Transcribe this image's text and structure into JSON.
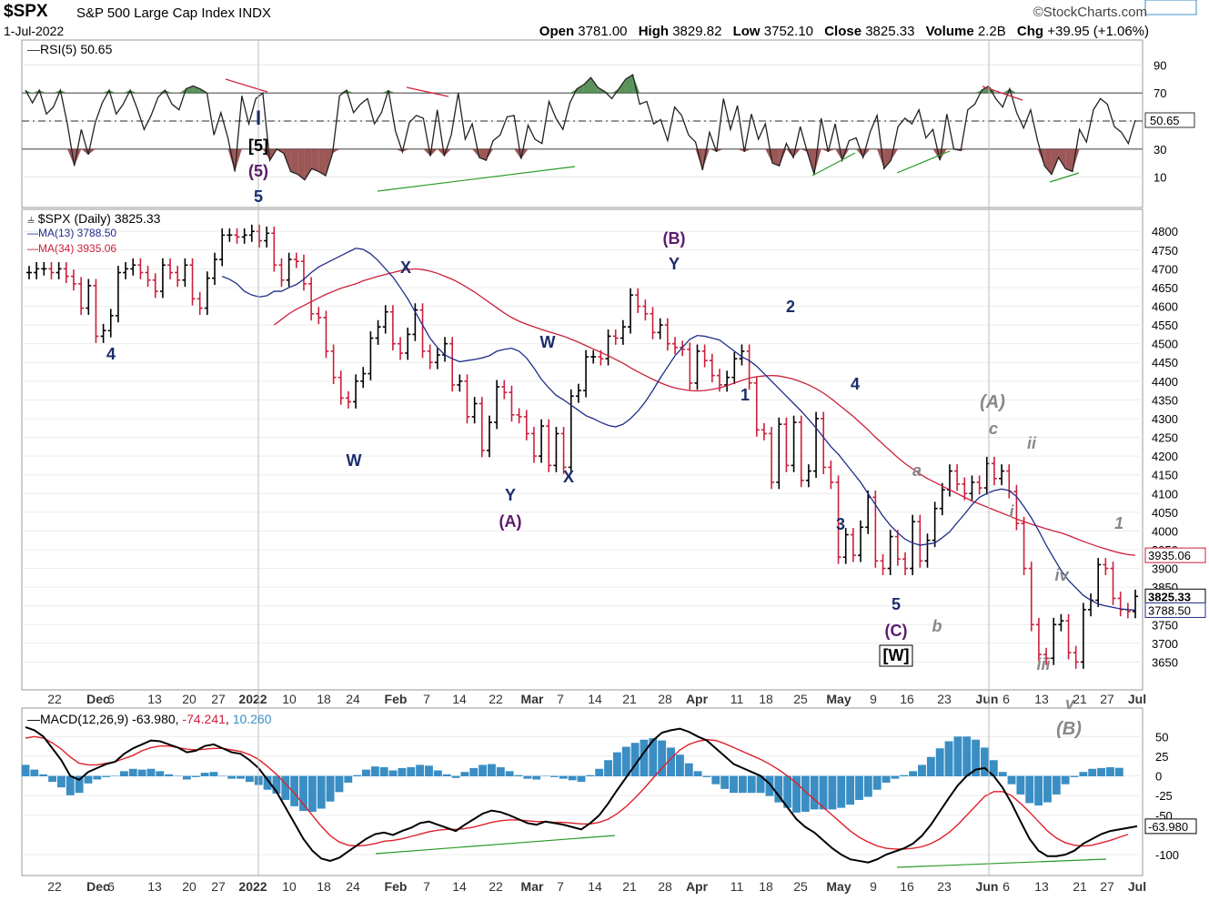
{
  "header": {
    "symbol": "$SPX",
    "name": "S&P 500 Large Cap Index INDX",
    "date": "1-Jul-2022",
    "brand": "©StockCharts.com",
    "open_label": "Open",
    "open": "3781.00",
    "high_label": "High",
    "high": "3829.82",
    "low_label": "Low",
    "low": "3752.10",
    "close_label": "Close",
    "close": "3825.33",
    "volume_label": "Volume",
    "volume": "2.2B",
    "chg_label": "Chg",
    "chg": "+39.95 (+1.06%)"
  },
  "colors": {
    "up": "#000000",
    "down": "#cc1f3a",
    "ma13": "#1f2d8a",
    "ma34": "#cc1f3a",
    "rsi_above": "#3e7f3e",
    "rsi_below": "#8b3a3a",
    "macd_hist": "#3a8ec4",
    "divergence": "#2a9a2a",
    "count_blue": "#1a2d6b",
    "count_purple": "#5b1a6e",
    "count_gray": "#888888"
  },
  "chart_data": [
    {
      "type": "line",
      "panel": "rsi",
      "title": "RSI(5) 50.65",
      "last_value": "50.65",
      "ylim": [
        0,
        100
      ],
      "y_ticks": [
        "90",
        "70",
        "50",
        "30",
        "10"
      ],
      "levels": [
        70,
        50,
        30
      ],
      "values": [
        72,
        63,
        72,
        55,
        60,
        72,
        48,
        18,
        44,
        26,
        49,
        63,
        72,
        55,
        62,
        72,
        59,
        44,
        54,
        67,
        72,
        62,
        58,
        73,
        75,
        73,
        70,
        40,
        56,
        38,
        14,
        68,
        48,
        66,
        70,
        22,
        30,
        27,
        14,
        12,
        8,
        16,
        14,
        11,
        27,
        68,
        72,
        56,
        62,
        66,
        48,
        56,
        72,
        43,
        28,
        49,
        54,
        52,
        25,
        58,
        25,
        40,
        70,
        37,
        48,
        24,
        22,
        36,
        40,
        53,
        54,
        23,
        47,
        37,
        34,
        64,
        52,
        44,
        63,
        73,
        76,
        81,
        74,
        71,
        66,
        73,
        80,
        83,
        62,
        64,
        48,
        51,
        36,
        60,
        54,
        40,
        35,
        15,
        42,
        28,
        66,
        44,
        61,
        28,
        55,
        37,
        48,
        20,
        18,
        34,
        24,
        46,
        28,
        12,
        52,
        28,
        48,
        22,
        36,
        38,
        24,
        42,
        54,
        16,
        22,
        46,
        52,
        48,
        58,
        38,
        44,
        22,
        55,
        30,
        29,
        58,
        62,
        72,
        75,
        66,
        60,
        73,
        56,
        45,
        58,
        36,
        18,
        12,
        24,
        16,
        14,
        44,
        35,
        58,
        66,
        62,
        46,
        42,
        34,
        50.65
      ]
    },
    {
      "type": "ohlc",
      "panel": "price",
      "title": "$SPX (Daily) 3825.33",
      "ylim": [
        3600,
        4820
      ],
      "y_ticks": [
        "4800",
        "4750",
        "4700",
        "4650",
        "4600",
        "4550",
        "4500",
        "4450",
        "4400",
        "4350",
        "4300",
        "4250",
        "4200",
        "4150",
        "4100",
        "4050",
        "4000",
        "3950",
        "3900",
        "3850",
        "3800",
        "3750",
        "3700",
        "3650"
      ],
      "x_ticks": [
        "22",
        "Dec",
        "6",
        "13",
        "20",
        "27",
        "2022",
        "10",
        "18",
        "24",
        "Feb",
        "7",
        "14",
        "22",
        "Mar",
        "7",
        "14",
        "21",
        "28",
        "Apr",
        "11",
        "18",
        "25",
        "May",
        "9",
        "16",
        "23",
        "Jun",
        "6",
        "13",
        "21",
        "27",
        "Jul"
      ],
      "series": [
        {
          "name": "$SPX (Daily) 3825.33",
          "last_value": "3825.33"
        },
        {
          "name": "MA(13) 3788.50",
          "last_value": "3788.50"
        },
        {
          "name": "MA(34) 3935.06",
          "last_value": "3935.06"
        }
      ],
      "close": [
        4690,
        4700,
        4700,
        4690,
        4700,
        4680,
        4660,
        4595,
        4655,
        4520,
        4535,
        4575,
        4690,
        4700,
        4710,
        4690,
        4670,
        4640,
        4710,
        4690,
        4670,
        4710,
        4620,
        4595,
        4675,
        4725,
        4790,
        4790,
        4785,
        4790,
        4800,
        4775,
        4795,
        4710,
        4670,
        4725,
        4720,
        4660,
        4580,
        4570,
        4480,
        4410,
        4355,
        4345,
        4400,
        4420,
        4515,
        4545,
        4585,
        4500,
        4475,
        4525,
        4590,
        4480,
        4450,
        4470,
        4500,
        4390,
        4400,
        4305,
        4340,
        4215,
        4290,
        4385,
        4370,
        4310,
        4305,
        4260,
        4200,
        4280,
        4175,
        4260,
        4170,
        4360,
        4375,
        4465,
        4465,
        4460,
        4520,
        4515,
        4545,
        4630,
        4600,
        4580,
        4530,
        4550,
        4500,
        4490,
        4485,
        4395,
        4480,
        4455,
        4415,
        4390,
        4410,
        4460,
        4480,
        4395,
        4270,
        4260,
        4130,
        4285,
        4175,
        4290,
        4135,
        4160,
        4300,
        4170,
        4130,
        3930,
        3990,
        3935,
        4010,
        4090,
        3920,
        3900,
        3985,
        3925,
        3900,
        4025,
        3920,
        3975,
        4060,
        4110,
        4160,
        4125,
        4100,
        4130,
        4115,
        4180,
        4140,
        4160,
        4105,
        4020,
        3900,
        3750,
        3670,
        3660,
        3750,
        3760,
        3675,
        3650,
        3790,
        3815,
        3910,
        3900,
        3820,
        3790,
        3785,
        3825.33
      ],
      "ma13": [
        4680,
        4672,
        4660,
        4640,
        4630,
        4625,
        4628,
        4640,
        4640,
        4650,
        4658,
        4672,
        4690,
        4705,
        4715,
        4725,
        4735,
        4745,
        4755,
        4752,
        4740,
        4722,
        4700,
        4678,
        4650,
        4620,
        4585,
        4550,
        4515,
        4490,
        4470,
        4460,
        4452,
        4455,
        4458,
        4462,
        4468,
        4480,
        4485,
        4488,
        4480,
        4462,
        4435,
        4405,
        4382,
        4362,
        4350,
        4336,
        4322,
        4308,
        4300,
        4290,
        4282,
        4278,
        4285,
        4300,
        4320,
        4345,
        4375,
        4408,
        4438,
        4468,
        4490,
        4512,
        4522,
        4520,
        4515,
        4510,
        4495,
        4480,
        4465,
        4455,
        4440,
        4420,
        4400,
        4380,
        4360,
        4340,
        4320,
        4298,
        4275,
        4250,
        4225,
        4205,
        4180,
        4155,
        4130,
        4100,
        4070,
        4040,
        4015,
        3995,
        3978,
        3968,
        3962,
        3965,
        3968,
        3982,
        3998,
        4022,
        4045,
        4070,
        4090,
        4100,
        4108,
        4112,
        4108,
        4092,
        4065,
        4035,
        4000,
        3962,
        3928,
        3895,
        3868,
        3848,
        3828,
        3815,
        3805,
        3800,
        3796,
        3792,
        3790,
        3788.5
      ],
      "ma34": [
        4550,
        4565,
        4580,
        4592,
        4602,
        4612,
        4622,
        4632,
        4640,
        4648,
        4654,
        4660,
        4668,
        4674,
        4680,
        4685,
        4690,
        4695,
        4698,
        4700,
        4698,
        4694,
        4688,
        4680,
        4672,
        4662,
        4650,
        4638,
        4624,
        4610,
        4596,
        4582,
        4570,
        4560,
        4552,
        4545,
        4538,
        4532,
        4526,
        4520,
        4512,
        4504,
        4495,
        4486,
        4477,
        4468,
        4458,
        4448,
        4436,
        4425,
        4415,
        4405,
        4396,
        4388,
        4382,
        4378,
        4375,
        4374,
        4375,
        4378,
        4382,
        4388,
        4395,
        4402,
        4408,
        4412,
        4414,
        4415,
        4414,
        4410,
        4405,
        4398,
        4390,
        4380,
        4368,
        4354,
        4338,
        4322,
        4306,
        4288,
        4270,
        4250,
        4232,
        4214,
        4196,
        4180,
        4166,
        4152,
        4140,
        4130,
        4120,
        4110,
        4100,
        4090,
        4080,
        4072,
        4064,
        4056,
        4048,
        4040,
        4032,
        4025,
        4018,
        4012,
        4006,
        4000,
        3995,
        3988,
        3980,
        3972,
        3965,
        3958,
        3952,
        3946,
        3941,
        3937,
        3935.06
      ]
    },
    {
      "type": "line",
      "panel": "macd",
      "title": "MACD(12,26,9)",
      "series": [
        {
          "name": "MACD",
          "last_value": "-63.980"
        },
        {
          "name": "Signal",
          "last_value": "-74.241"
        },
        {
          "name": "Histogram",
          "last_value": "10.260"
        }
      ],
      "ylim": [
        -115,
        70
      ],
      "y_ticks": [
        "50",
        "25",
        "0",
        "-25",
        "-50",
        "-100"
      ],
      "macd": [
        62,
        58,
        50,
        35,
        20,
        0,
        -5,
        5,
        10,
        15,
        18,
        28,
        35,
        40,
        45,
        44,
        40,
        36,
        30,
        32,
        38,
        40,
        35,
        30,
        28,
        20,
        10,
        -5,
        -20,
        -40,
        -60,
        -80,
        -95,
        -105,
        -108,
        -104,
        -96,
        -88,
        -80,
        -74,
        -72,
        -75,
        -70,
        -66,
        -60,
        -58,
        -62,
        -66,
        -70,
        -62,
        -55,
        -48,
        -44,
        -46,
        -50,
        -55,
        -60,
        -62,
        -58,
        -60,
        -62,
        -65,
        -68,
        -60,
        -50,
        -35,
        -18,
        -2,
        14,
        30,
        45,
        55,
        58,
        60,
        56,
        50,
        45,
        35,
        25,
        15,
        10,
        5,
        0,
        -10,
        -25,
        -40,
        -55,
        -65,
        -72,
        -82,
        -92,
        -100,
        -106,
        -108,
        -110,
        -106,
        -100,
        -96,
        -92,
        -86,
        -76,
        -62,
        -45,
        -28,
        -12,
        0,
        8,
        10,
        0,
        -15,
        -35,
        -58,
        -80,
        -95,
        -102,
        -102,
        -100,
        -95,
        -86,
        -80,
        -74,
        -70,
        -68,
        -66,
        -63.98
      ],
      "signal": [
        48,
        50,
        48,
        42,
        34,
        24,
        16,
        14,
        14,
        16,
        18,
        22,
        26,
        32,
        36,
        38,
        38,
        36,
        34,
        33,
        34,
        35,
        35,
        33,
        31,
        27,
        21,
        12,
        2,
        -10,
        -22,
        -36,
        -50,
        -64,
        -76,
        -84,
        -88,
        -89,
        -88,
        -86,
        -83,
        -82,
        -80,
        -77,
        -74,
        -71,
        -69,
        -68,
        -68,
        -67,
        -65,
        -62,
        -59,
        -57,
        -56,
        -56,
        -57,
        -58,
        -58,
        -59,
        -59,
        -60,
        -61,
        -61,
        -59,
        -55,
        -48,
        -39,
        -28,
        -16,
        -3,
        10,
        22,
        33,
        40,
        44,
        46,
        45,
        41,
        36,
        31,
        26,
        21,
        15,
        8,
        0,
        -9,
        -20,
        -30,
        -40,
        -50,
        -60,
        -70,
        -78,
        -84,
        -89,
        -92,
        -93,
        -93,
        -92,
        -90,
        -86,
        -80,
        -72,
        -62,
        -50,
        -38,
        -26,
        -20,
        -20,
        -25,
        -35,
        -46,
        -58,
        -70,
        -79,
        -85,
        -88,
        -89,
        -88,
        -85,
        -82,
        -78,
        -74.241
      ],
      "histogram": [
        14,
        8,
        2,
        -7,
        -14,
        -24,
        -21,
        -9,
        -4,
        -1,
        0,
        6,
        9,
        8,
        9,
        6,
        2,
        0,
        -4,
        -1,
        4,
        5,
        0,
        -3,
        -3,
        -7,
        -11,
        -17,
        -22,
        -30,
        -38,
        -44,
        -45,
        -41,
        -32,
        -20,
        -8,
        1,
        8,
        12,
        11,
        7,
        10,
        11,
        14,
        13,
        7,
        2,
        -2,
        5,
        10,
        14,
        15,
        11,
        6,
        1,
        -3,
        -4,
        0,
        -1,
        -3,
        -5,
        -7,
        1,
        9,
        20,
        30,
        37,
        42,
        46,
        48,
        45,
        36,
        27,
        16,
        6,
        -1,
        -10,
        -16,
        -21,
        -21,
        -21,
        -21,
        -25,
        -33,
        -40,
        -46,
        -45,
        -42,
        -42,
        -42,
        -40,
        -36,
        -30,
        -26,
        -17,
        -8,
        -3,
        1,
        6,
        14,
        24,
        35,
        44,
        50,
        50,
        46,
        36,
        20,
        5,
        -10,
        -23,
        -34,
        -37,
        -33,
        -23,
        -10,
        -1,
        5,
        9,
        10,
        11,
        10.26
      ]
    }
  ],
  "annotations": {
    "wave_counts": [
      {
        "text": "I",
        "color": "count_blue"
      },
      {
        "text": "[5]",
        "color": "count_black"
      },
      {
        "text": "(5)",
        "color": "count_purple"
      },
      {
        "text": "5",
        "color": "count_blue"
      },
      {
        "text": "4",
        "color": "count_blue"
      },
      {
        "text": "W",
        "color": "count_blue"
      },
      {
        "text": "X",
        "color": "count_blue"
      },
      {
        "text": "Y",
        "color": "count_blue"
      },
      {
        "text": "(A)",
        "color": "count_purple"
      },
      {
        "text": "W",
        "color": "count_blue"
      },
      {
        "text": "X",
        "color": "count_blue"
      },
      {
        "text": "(B)",
        "color": "count_purple"
      },
      {
        "text": "Y",
        "color": "count_blue"
      },
      {
        "text": "2",
        "color": "count_blue"
      },
      {
        "text": "1",
        "color": "count_blue"
      },
      {
        "text": "4",
        "color": "count_blue"
      },
      {
        "text": "3",
        "color": "count_blue"
      },
      {
        "text": "5",
        "color": "count_blue"
      },
      {
        "text": "(C)",
        "color": "count_purple"
      },
      {
        "text": "[W]",
        "color": "count_black"
      },
      {
        "text": "a",
        "color": "count_gray"
      },
      {
        "text": "b",
        "color": "count_gray"
      },
      {
        "text": "(A)",
        "color": "count_gray"
      },
      {
        "text": "c",
        "color": "count_gray"
      },
      {
        "text": "ii",
        "color": "count_gray"
      },
      {
        "text": "i",
        "color": "count_gray"
      },
      {
        "text": "iv",
        "color": "count_gray"
      },
      {
        "text": "iii",
        "color": "count_gray"
      },
      {
        "text": "v",
        "color": "count_gray"
      },
      {
        "text": "(B)",
        "color": "count_gray"
      },
      {
        "text": "1",
        "color": "count_gray"
      }
    ]
  }
}
